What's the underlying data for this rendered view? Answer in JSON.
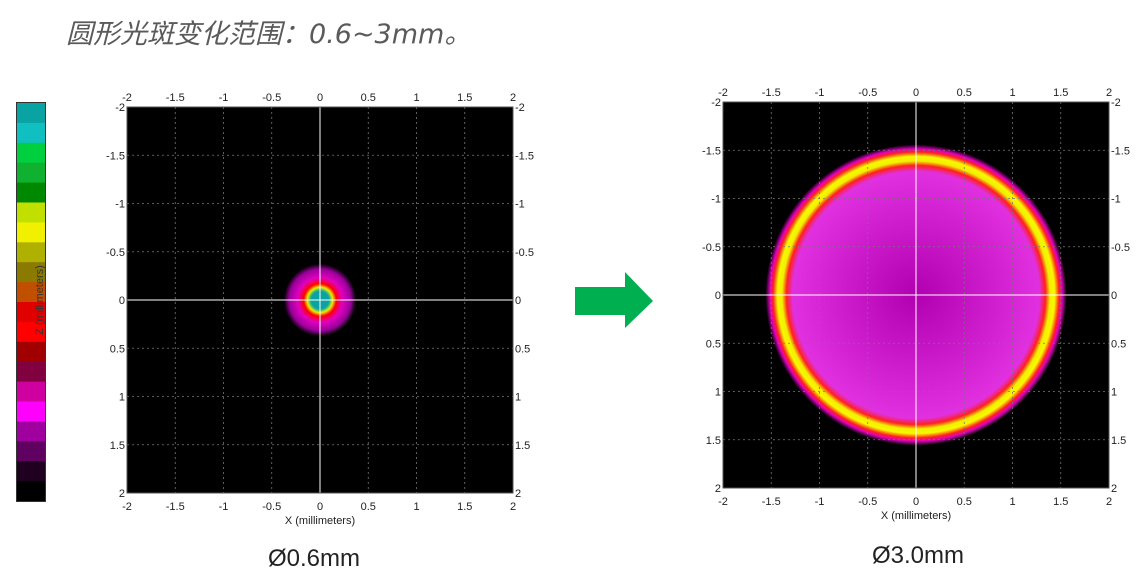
{
  "title": "圆形光斑变化范围：0.6~3mm。",
  "colorbar": {
    "label": "Z (millimeters)",
    "colors": [
      "#0aa3a3",
      "#10c0c0",
      "#00d040",
      "#10b030",
      "#008800",
      "#c0e000",
      "#f0f000",
      "#b0b000",
      "#8a7a00",
      "#c05000",
      "#e00000",
      "#ff0000",
      "#a00000",
      "#800040",
      "#d000a0",
      "#ff00ff",
      "#a000a0",
      "#600060",
      "#200020",
      "#000000"
    ]
  },
  "plots": [
    {
      "id": "small",
      "caption": "Ø0.6mm",
      "xlabel": "X (millimeters)",
      "top_ticks": [
        "-2",
        "-1.5",
        "-1",
        "-0.5",
        "0",
        "0.5",
        "1",
        "1.5",
        "2"
      ],
      "bottom_ticks": [
        "-2",
        "-1.5",
        "-1",
        "-0.5",
        "0",
        "0.5",
        "1",
        "1.5",
        "2"
      ],
      "left_ticks": [
        "-2",
        "-1.5",
        "-1",
        "-0.5",
        "0",
        "0.5",
        "1",
        "1.5",
        "2"
      ],
      "right_ticks": [
        "-2",
        "-1.5",
        "-1",
        "-0.5",
        "0",
        "0.5",
        "1",
        "1.5",
        "2"
      ],
      "spot_diameter_mm": 0.6
    },
    {
      "id": "large",
      "caption": "Ø3.0mm",
      "xlabel": "X (millimeters)",
      "top_ticks": [
        "-2",
        "-1.5",
        "-1",
        "-0.5",
        "0",
        "0.5",
        "1",
        "1.5",
        "2"
      ],
      "bottom_ticks": [
        "-2",
        "-1.5",
        "-1",
        "-0.5",
        "0",
        "0.5",
        "1",
        "1.5",
        "2"
      ],
      "left_ticks": [
        "-2",
        "-1.5",
        "-1",
        "-0.5",
        "0",
        "0.5",
        "1",
        "1.5",
        "2"
      ],
      "right_ticks": [
        "-2",
        "-1.5",
        "-1",
        "-0.5",
        "0",
        "0.5",
        "1",
        "1.5",
        "2"
      ],
      "spot_diameter_mm": 3.0
    }
  ],
  "arrow_color": "#00b050"
}
